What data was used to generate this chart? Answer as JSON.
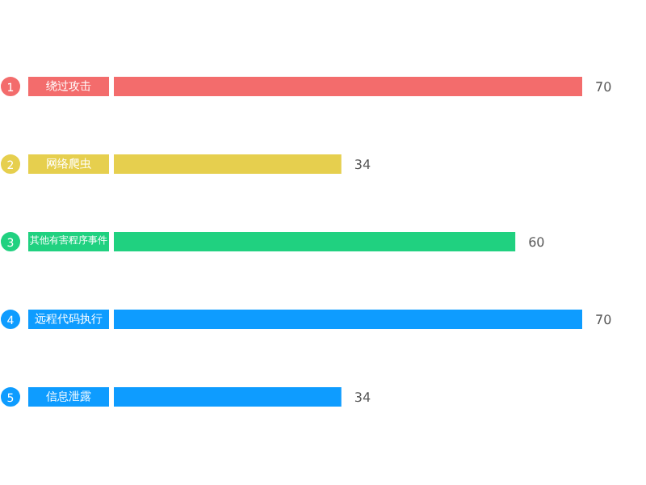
{
  "chart_data": {
    "type": "bar",
    "orientation": "horizontal",
    "categories": [
      "绕过攻击",
      "网络爬虫",
      "其他有害程序事件",
      "远程代码执行",
      "信息泄露"
    ],
    "values": [
      70,
      34,
      60,
      70,
      34
    ],
    "colors": [
      "#f36c6c",
      "#e6cf4e",
      "#20d180",
      "#0e9cff",
      "#0e9cff"
    ],
    "xlim": [
      0,
      70
    ],
    "data_labels": true,
    "annotations": [
      "1",
      "2",
      "3",
      "4",
      "5"
    ]
  }
}
